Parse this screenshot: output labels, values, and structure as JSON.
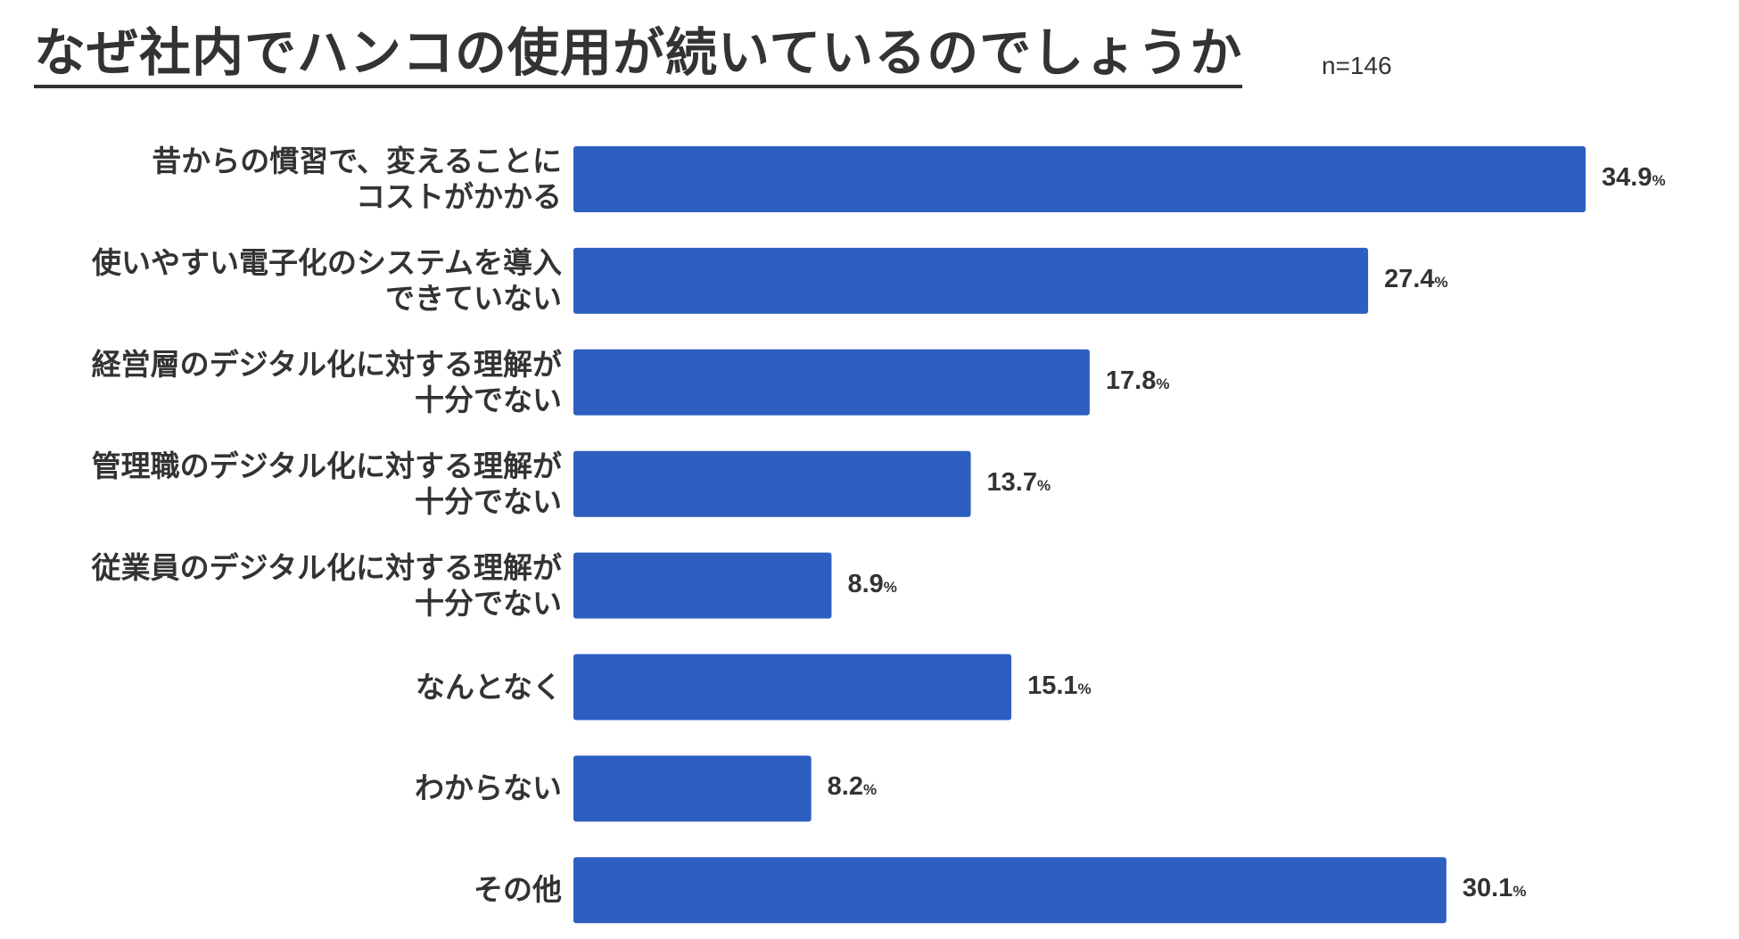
{
  "header": {
    "title": "なぜ社内でハンコの使用が続いているのでしょうか",
    "sample_size": "n=146"
  },
  "colors": {
    "bar": "#2d5fc1",
    "text": "#333333"
  },
  "chart_data": {
    "type": "bar",
    "orientation": "horizontal",
    "title": "なぜ社内でハンコの使用が続いているのでしょうか",
    "unit": "%",
    "xlim": [
      0,
      40
    ],
    "categories": [
      [
        "昔からの慣習で、変えることに",
        "コストがかかる"
      ],
      [
        "使いやすい電子化のシステムを導入",
        "できていない"
      ],
      [
        "経営層のデジタル化に対する理解が",
        "十分でない"
      ],
      [
        "管理職のデジタル化に対する理解が",
        "十分でない"
      ],
      [
        "従業員のデジタル化に対する理解が",
        "十分でない"
      ],
      [
        "なんとなく"
      ],
      [
        "わからない"
      ],
      [
        "その他"
      ]
    ],
    "values": [
      34.9,
      27.4,
      17.8,
      13.7,
      8.9,
      15.1,
      8.2,
      30.1
    ],
    "value_labels": [
      "34.9",
      "27.4",
      "17.8",
      "13.7",
      "8.9",
      "15.1",
      "8.2",
      "30.1"
    ],
    "percent_sign": "%",
    "grid": false,
    "legend": "none"
  }
}
